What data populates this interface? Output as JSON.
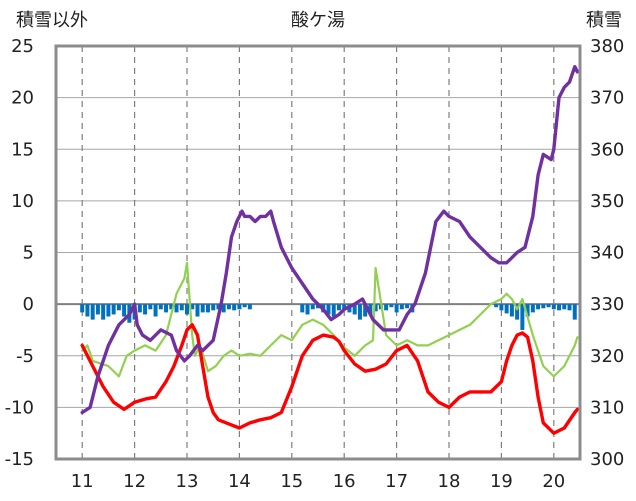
{
  "chart_data": {
    "type": "line",
    "title": "酸ケ湯",
    "ylabel_left": "積雪以外",
    "ylabel_right": "積雪",
    "x_ticks": [
      "11",
      "12",
      "13",
      "14",
      "15",
      "16",
      "17",
      "18",
      "19",
      "20"
    ],
    "xlim": [
      10.5,
      20.5
    ],
    "ylim_left": [
      -15,
      25
    ],
    "ylim_right": [
      300,
      380
    ],
    "yticks_left": [
      "25",
      "20",
      "15",
      "10",
      "5",
      "0",
      "-5",
      "-10",
      "-15"
    ],
    "yticks_right": [
      "380",
      "370",
      "360",
      "350",
      "340",
      "330",
      "320",
      "310",
      "300"
    ],
    "grid": {
      "x": "dashed",
      "y": "solid"
    },
    "colors": {
      "snow": "#7030a0",
      "temperature": "#ff0000",
      "green": "#92d050",
      "bars": "#0070c0"
    },
    "series": [
      {
        "key": "snow",
        "axis": "right",
        "color": "#7030a0",
        "x": [
          11.0,
          11.15,
          11.3,
          11.5,
          11.7,
          11.9,
          12.0,
          12.05,
          12.15,
          12.3,
          12.5,
          12.7,
          12.8,
          12.95,
          13.05,
          13.2,
          13.3,
          13.5,
          13.65,
          13.75,
          13.85,
          13.95,
          14.05,
          14.1,
          14.2,
          14.3,
          14.4,
          14.5,
          14.6,
          14.65,
          14.8,
          15.0,
          15.2,
          15.4,
          15.6,
          15.75,
          15.9,
          16.0,
          16.2,
          16.35,
          16.45,
          16.55,
          16.75,
          16.95,
          17.05,
          17.2,
          17.35,
          17.55,
          17.75,
          17.9,
          18.0,
          18.2,
          18.4,
          18.6,
          18.8,
          18.95,
          19.1,
          19.2,
          19.3,
          19.45,
          19.6,
          19.7,
          19.8,
          19.95,
          20.0,
          20.1,
          20.2,
          20.3,
          20.4,
          20.45
        ],
        "y": [
          309,
          310,
          316,
          322,
          326,
          328,
          330,
          326,
          324,
          323,
          325,
          324,
          321,
          319,
          320,
          322,
          321,
          323,
          330,
          336,
          343,
          346,
          348,
          347,
          347,
          346,
          347,
          347,
          348,
          346,
          341,
          337,
          334,
          331,
          329,
          327,
          328,
          329,
          330,
          331,
          329,
          327,
          325,
          325,
          325,
          328,
          330,
          336,
          346,
          348,
          347,
          346,
          343,
          341,
          339,
          338,
          338,
          339,
          340,
          341,
          347,
          355,
          359,
          358,
          360,
          370,
          372,
          373,
          376,
          375
        ]
      },
      {
        "key": "temperature",
        "axis": "left",
        "color": "#ff0000",
        "x": [
          11.0,
          11.2,
          11.4,
          11.6,
          11.8,
          12.0,
          12.2,
          12.4,
          12.6,
          12.75,
          12.9,
          13.0,
          13.1,
          13.2,
          13.3,
          13.4,
          13.5,
          13.6,
          13.8,
          14.0,
          14.2,
          14.4,
          14.6,
          14.8,
          15.0,
          15.2,
          15.4,
          15.6,
          15.8,
          15.9,
          16.0,
          16.2,
          16.4,
          16.6,
          16.8,
          17.0,
          17.2,
          17.4,
          17.6,
          17.8,
          18.0,
          18.2,
          18.4,
          18.6,
          18.8,
          19.0,
          19.1,
          19.2,
          19.3,
          19.4,
          19.5,
          19.6,
          19.7,
          19.8,
          20.0,
          20.2,
          20.4,
          20.45
        ],
        "y": [
          -4,
          -6,
          -8,
          -9.5,
          -10.2,
          -9.5,
          -9.2,
          -9.0,
          -7.5,
          -6.0,
          -4.0,
          -2.5,
          -2.0,
          -3.0,
          -6.0,
          -9.0,
          -10.5,
          -11.2,
          -11.6,
          -12.0,
          -11.5,
          -11.2,
          -11.0,
          -10.5,
          -8.0,
          -5.0,
          -3.5,
          -3.0,
          -3.2,
          -3.6,
          -4.5,
          -5.8,
          -6.5,
          -6.3,
          -5.8,
          -4.5,
          -4.0,
          -5.5,
          -8.5,
          -9.5,
          -10.0,
          -9.0,
          -8.5,
          -8.5,
          -8.5,
          -7.5,
          -5.5,
          -4.0,
          -3.0,
          -2.8,
          -3.2,
          -5.5,
          -9.0,
          -11.5,
          -12.5,
          -12.0,
          -10.5,
          -10.2
        ]
      },
      {
        "key": "green",
        "axis": "left",
        "color": "#92d050",
        "x": [
          11.0,
          11.1,
          11.2,
          11.5,
          11.7,
          11.85,
          12.0,
          12.2,
          12.4,
          12.6,
          12.8,
          12.95,
          13.0,
          13.1,
          13.15,
          13.25,
          13.4,
          13.55,
          13.7,
          13.85,
          14.0,
          14.2,
          14.4,
          14.6,
          14.8,
          15.0,
          15.2,
          15.4,
          15.6,
          15.8,
          16.0,
          16.2,
          16.4,
          16.55,
          16.6,
          16.8,
          17.0,
          17.2,
          17.4,
          17.6,
          17.8,
          18.0,
          18.2,
          18.4,
          18.6,
          18.8,
          19.0,
          19.1,
          19.2,
          19.3,
          19.4,
          19.6,
          19.8,
          20.0,
          20.2,
          20.4,
          20.45
        ],
        "y": [
          -4.5,
          -4.0,
          -5.5,
          -6.0,
          -7.0,
          -5.0,
          -4.5,
          -4.0,
          -4.5,
          -3.0,
          1.0,
          2.5,
          4.0,
          -3.0,
          -5.0,
          -4.0,
          -6.5,
          -6.0,
          -5.0,
          -4.5,
          -5.0,
          -4.8,
          -5.0,
          -4.0,
          -3.0,
          -3.5,
          -2.0,
          -1.5,
          -2.0,
          -3.0,
          -4.2,
          -5.0,
          -4.0,
          -3.5,
          3.5,
          -3.0,
          -4.0,
          -3.5,
          -4.0,
          -4.0,
          -3.5,
          -3.0,
          -2.5,
          -2.0,
          -1.0,
          0.0,
          0.5,
          1.0,
          0.5,
          -0.5,
          0.5,
          -3.0,
          -6.0,
          -7.0,
          -6.0,
          -4.0,
          -3.2
        ]
      }
    ],
    "bars": {
      "axis": "left",
      "color": "#0070c0",
      "x": [
        11.0,
        11.1,
        11.2,
        11.3,
        11.4,
        11.5,
        11.6,
        11.7,
        11.8,
        11.9,
        12.0,
        12.1,
        12.2,
        12.3,
        12.4,
        12.5,
        12.6,
        12.7,
        12.8,
        12.9,
        13.0,
        13.1,
        13.2,
        13.3,
        13.4,
        13.5,
        13.6,
        13.7,
        13.8,
        13.9,
        14.0,
        14.1,
        14.2,
        15.2,
        15.3,
        15.4,
        15.5,
        15.6,
        15.7,
        15.8,
        15.9,
        16.0,
        16.1,
        16.2,
        16.3,
        16.4,
        16.5,
        16.6,
        16.7,
        16.8,
        16.9,
        17.0,
        17.1,
        17.2,
        17.3,
        18.9,
        19.0,
        19.1,
        19.2,
        19.3,
        19.4,
        19.5,
        19.6,
        19.7,
        19.8,
        19.9,
        20.0,
        20.1,
        20.2,
        20.3,
        20.4
      ],
      "values": [
        -0.8,
        -1.2,
        -1.5,
        -1.0,
        -1.5,
        -1.2,
        -1.0,
        -0.6,
        -1.2,
        -1.8,
        -1.5,
        -0.8,
        -1.0,
        -0.5,
        -1.2,
        -0.5,
        -0.8,
        -0.5,
        -0.8,
        -0.6,
        -1.0,
        -0.5,
        -1.2,
        -0.8,
        -0.8,
        -0.6,
        -0.5,
        -0.8,
        -0.5,
        -0.6,
        -0.5,
        -0.3,
        -0.5,
        -0.8,
        -1.0,
        -0.5,
        -0.4,
        -0.8,
        -1.0,
        -1.2,
        -0.6,
        -0.5,
        -0.8,
        -1.0,
        -1.5,
        -1.2,
        -1.0,
        -0.7,
        -0.5,
        -0.6,
        -0.3,
        -0.8,
        -0.5,
        -0.4,
        -0.8,
        -0.3,
        -0.6,
        -0.9,
        -1.2,
        -1.5,
        -2.5,
        -1.2,
        -0.8,
        -0.5,
        -0.4,
        -0.3,
        -0.5,
        -0.6,
        -0.5,
        -0.6,
        -1.5
      ]
    }
  }
}
